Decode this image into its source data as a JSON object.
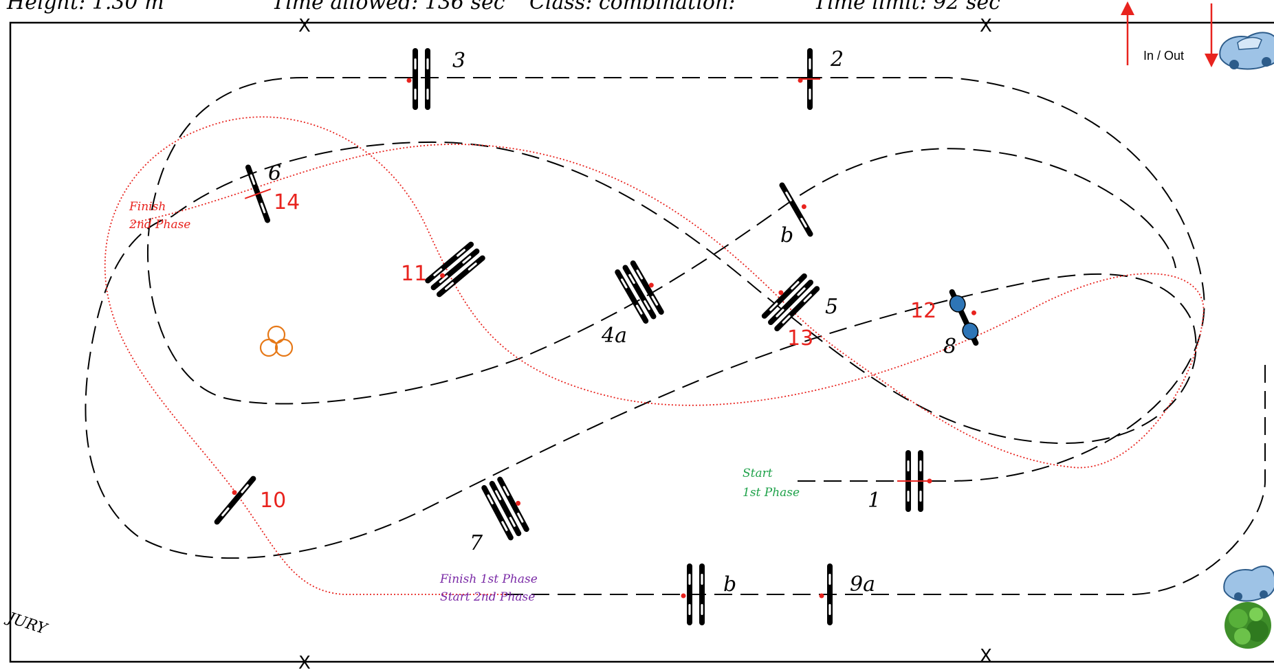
{
  "header": {
    "height_text": "Height: 1.30 m",
    "time_allowed_text": "Time allowed: 136 sec",
    "class_text": "Class: combination:",
    "time_limit_text": "Time limit:     92 sec"
  },
  "arena": {
    "in_out_label": "In / Out",
    "jury_label": "JURY"
  },
  "jumps": [
    {
      "id": "1",
      "label": "1"
    },
    {
      "id": "2",
      "label": "2"
    },
    {
      "id": "3",
      "label": "3"
    },
    {
      "id": "4a",
      "label": "4a"
    },
    {
      "id": "4b",
      "label": "b"
    },
    {
      "id": "5",
      "label": "5"
    },
    {
      "id": "6",
      "label": "6"
    },
    {
      "id": "7",
      "label": "7"
    },
    {
      "id": "8",
      "label": "8"
    },
    {
      "id": "9a",
      "label": "9a"
    },
    {
      "id": "9b",
      "label": "b"
    },
    {
      "id": "10",
      "label": "10"
    },
    {
      "id": "11",
      "label": "11"
    },
    {
      "id": "12",
      "label": "12"
    },
    {
      "id": "13",
      "label": "13"
    },
    {
      "id": "14",
      "label": "14"
    }
  ],
  "phase_labels": {
    "start_1st_line1": "Start",
    "start_1st_line2": "1st Phase",
    "finish_1st_line1": "Finish 1st Phase",
    "finish_1st_line2": "Start   2nd Phase",
    "finish_2nd_line1": "Finish",
    "finish_2nd_line2": "2nd Phase"
  },
  "markers": {
    "x_glyph": "X"
  },
  "colors": {
    "first_phase_path": "#000000",
    "second_phase_path": "#e8231e",
    "second_phase_label": "#e8231e",
    "start_label": "#1fa24a",
    "finish_1st_label": "#7a2aa6",
    "in_out_arrow": "#e8231e",
    "flower_symbol": "#e67817",
    "liverpool_water": "#2e75b6"
  }
}
